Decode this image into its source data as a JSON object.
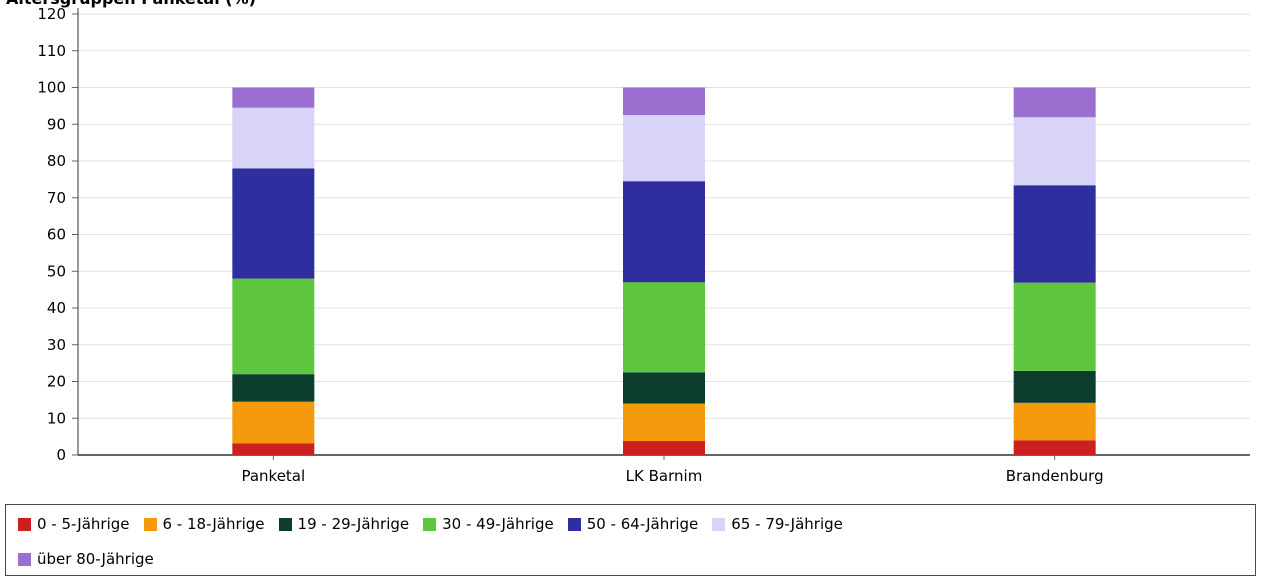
{
  "chart_data": {
    "type": "bar",
    "stacked": true,
    "title": "Altersgruppen Panketal (%)",
    "xlabel": "",
    "ylabel": "",
    "ylim": [
      0,
      120
    ],
    "yticks": [
      0,
      10,
      20,
      30,
      40,
      50,
      60,
      70,
      80,
      90,
      100,
      110,
      120
    ],
    "grid": true,
    "legend_position": "bottom",
    "categories": [
      "Panketal",
      "LK Barnim",
      "Brandenburg"
    ],
    "series": [
      {
        "name": "0 - 5-Jährige",
        "color": "#cc1f1f",
        "values": [
          3.2,
          3.8,
          4.0
        ]
      },
      {
        "name": "6 - 18-Jährige",
        "color": "#f59a0c",
        "values": [
          11.3,
          10.2,
          10.2
        ]
      },
      {
        "name": "19 - 29-Jährige",
        "color": "#0d3d2d",
        "values": [
          7.5,
          8.5,
          8.7
        ]
      },
      {
        "name": "30 - 49-Jährige",
        "color": "#5ec63e",
        "values": [
          26.0,
          24.5,
          24.0
        ]
      },
      {
        "name": "50 - 64-Jährige",
        "color": "#2e2e9e",
        "values": [
          30.0,
          27.5,
          26.5
        ]
      },
      {
        "name": "65 - 79-Jährige",
        "color": "#d7d4f7",
        "values": [
          16.5,
          18.0,
          18.5
        ]
      },
      {
        "name": "über 80-Jährige",
        "color": "#9b6fd0",
        "values": [
          5.5,
          7.5,
          8.1
        ]
      }
    ]
  }
}
